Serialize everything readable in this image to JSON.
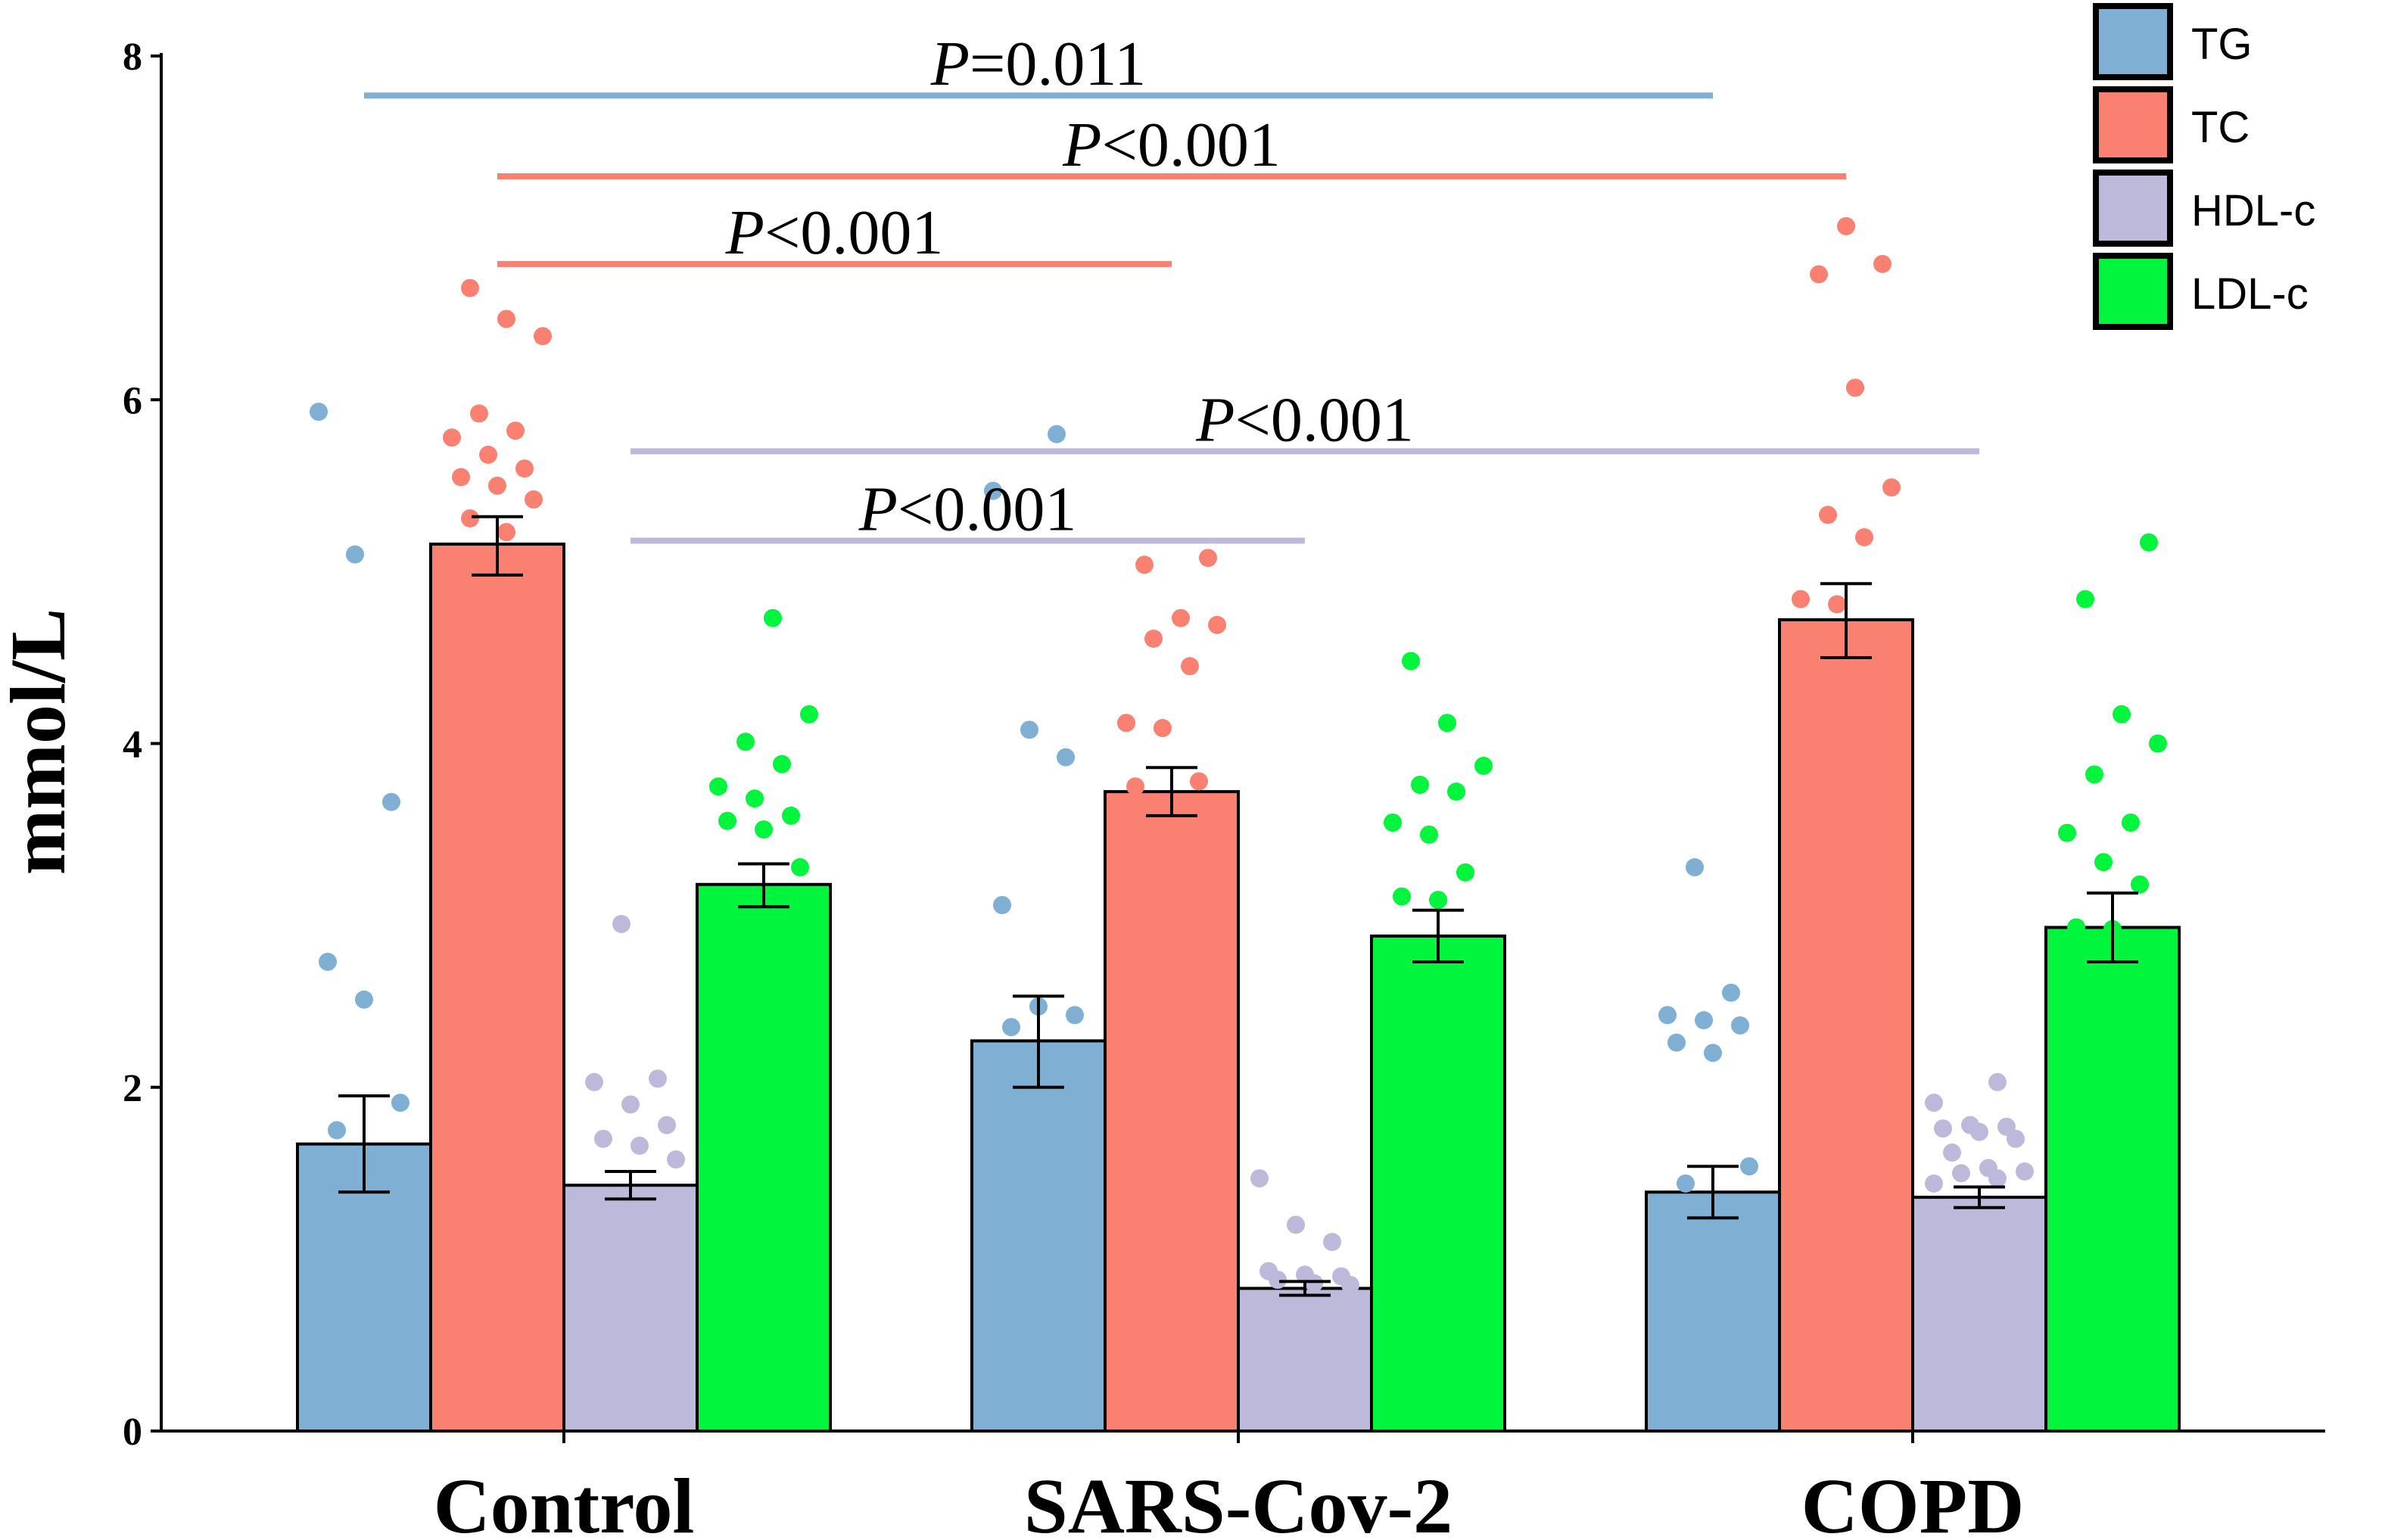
{
  "chart_data": {
    "type": "bar",
    "ylabel": "mmol/L",
    "xlabel": "",
    "ylim": [
      0,
      8
    ],
    "yticks": [
      0,
      2,
      4,
      6,
      8
    ],
    "categories": [
      "Control",
      "SARS-Cov-2",
      "COPD"
    ],
    "series": [
      {
        "name": "TG",
        "color": "#7FB0D4",
        "values": [
          1.67,
          2.27,
          1.39
        ],
        "errors": [
          [
            1.39,
            1.95
          ],
          [
            2.0,
            2.53
          ],
          [
            1.24,
            1.54
          ]
        ],
        "points": [
          [
            5.93,
            5.1,
            3.66,
            2.73,
            2.51,
            1.91,
            1.75
          ],
          [
            5.8,
            5.47,
            4.08,
            3.92,
            3.06,
            2.47,
            2.42,
            2.35
          ],
          [
            3.28,
            2.55,
            2.42,
            2.39,
            2.36,
            2.26,
            2.2,
            1.54,
            1.44
          ]
        ]
      },
      {
        "name": "TC",
        "color": "#FA8072",
        "values": [
          5.16,
          3.72,
          4.72
        ],
        "errors": [
          [
            4.98,
            5.32
          ],
          [
            3.58,
            3.86
          ],
          [
            4.5,
            4.93
          ]
        ],
        "points": [
          [
            6.65,
            6.47,
            6.37,
            5.92,
            5.82,
            5.78,
            5.68,
            5.6,
            5.55,
            5.5,
            5.42,
            5.31,
            5.23
          ],
          [
            5.08,
            5.04,
            4.73,
            4.69,
            4.61,
            4.45,
            4.12,
            4.09,
            3.78,
            3.75
          ],
          [
            7.01,
            6.79,
            6.73,
            6.07,
            5.49,
            5.33,
            5.2,
            4.84,
            4.81
          ]
        ]
      },
      {
        "name": "HDL-c",
        "color": "#BCB9DB",
        "values": [
          1.43,
          0.83,
          1.36
        ],
        "errors": [
          [
            1.35,
            1.51
          ],
          [
            0.79,
            0.87
          ],
          [
            1.3,
            1.42
          ]
        ],
        "points": [
          [
            2.95,
            2.05,
            2.03,
            1.9,
            1.78,
            1.7,
            1.66,
            1.58
          ],
          [
            1.47,
            1.2,
            1.1,
            0.93,
            0.91,
            0.9,
            0.88,
            0.86,
            0.85
          ],
          [
            2.03,
            1.91,
            1.78,
            1.77,
            1.76,
            1.74,
            1.7,
            1.62,
            1.53,
            1.51,
            1.5,
            1.47,
            1.44
          ]
        ]
      },
      {
        "name": "LDL-c",
        "color": "#00F53C",
        "values": [
          3.18,
          2.88,
          2.93
        ],
        "errors": [
          [
            3.05,
            3.3
          ],
          [
            2.73,
            3.03
          ],
          [
            2.73,
            3.13
          ]
        ],
        "points": [
          [
            4.73,
            4.17,
            4.01,
            3.88,
            3.75,
            3.68,
            3.58,
            3.55,
            3.5,
            3.28
          ],
          [
            4.48,
            4.12,
            3.87,
            3.76,
            3.72,
            3.54,
            3.47,
            3.25,
            3.11,
            3.09
          ],
          [
            5.17,
            4.84,
            4.17,
            4.0,
            3.82,
            3.54,
            3.48,
            3.31,
            3.18,
            2.93,
            2.92
          ]
        ]
      }
    ],
    "annotations": [
      {
        "prefix": "P",
        "text": "=0.011",
        "series": 0,
        "from_group": 0,
        "to_group": 2,
        "y": 7.77
      },
      {
        "prefix": "P",
        "text": "<0.001",
        "series": 1,
        "from_group": 0,
        "to_group": 2,
        "y": 7.3
      },
      {
        "prefix": "P",
        "text": "<0.001",
        "series": 1,
        "from_group": 0,
        "to_group": 1,
        "y": 6.79
      },
      {
        "prefix": "P",
        "text": "<0.001",
        "series": 2,
        "from_group": 0,
        "to_group": 2,
        "y": 5.7
      },
      {
        "prefix": "P",
        "text": "<0.001",
        "series": 2,
        "from_group": 0,
        "to_group": 1,
        "y": 5.18
      }
    ],
    "legend": {
      "position": "top-right",
      "entries": [
        "TG",
        "TC",
        "HDL-c",
        "LDL-c"
      ]
    }
  }
}
